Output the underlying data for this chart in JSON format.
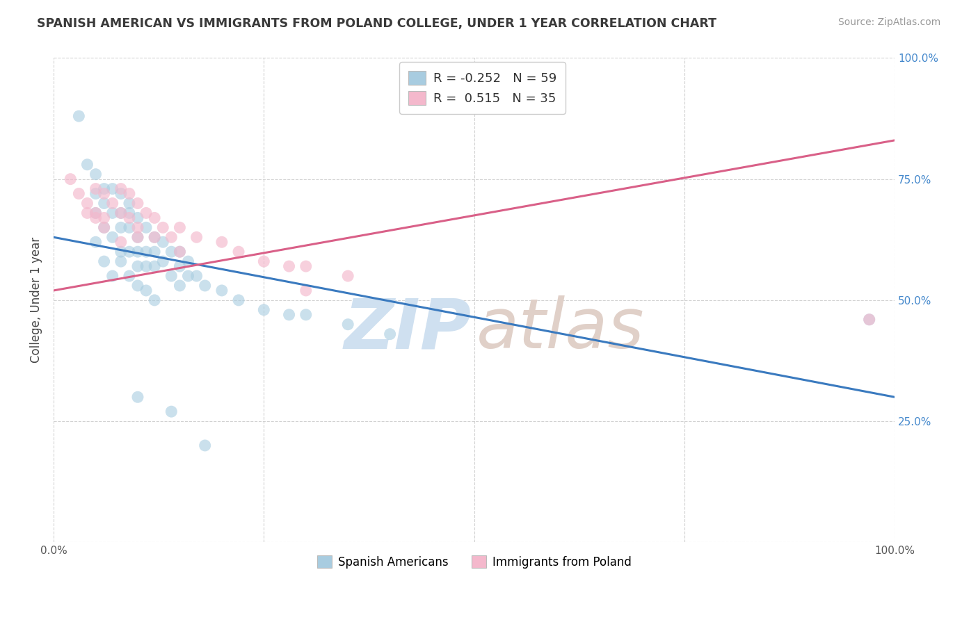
{
  "title": "SPANISH AMERICAN VS IMMIGRANTS FROM POLAND COLLEGE, UNDER 1 YEAR CORRELATION CHART",
  "source": "Source: ZipAtlas.com",
  "ylabel": "College, Under 1 year",
  "xlim": [
    0,
    100
  ],
  "ylim": [
    0,
    100
  ],
  "blue_R": -0.252,
  "blue_N": 59,
  "pink_R": 0.515,
  "pink_N": 35,
  "blue_scatter_color": "#a8cce0",
  "pink_scatter_color": "#f4b8cc",
  "blue_line_color": "#3a7abf",
  "pink_line_color": "#d96088",
  "legend_label_blue": "Spanish Americans",
  "legend_label_pink": "Immigrants from Poland",
  "watermark_zip_color": "#cfe0f0",
  "watermark_atlas_color": "#e0d0c8",
  "background_color": "#ffffff",
  "grid_color": "#cccccc",
  "title_color": "#3a3a3a",
  "source_color": "#999999",
  "right_tick_color": "#4488cc",
  "blue_line_x": [
    0,
    100
  ],
  "blue_line_y": [
    63,
    30
  ],
  "pink_line_x": [
    0,
    100
  ],
  "pink_line_y": [
    52,
    83
  ],
  "blue_scatter_x": [
    3,
    4,
    5,
    5,
    5,
    6,
    6,
    6,
    7,
    7,
    7,
    8,
    8,
    8,
    8,
    9,
    9,
    9,
    9,
    10,
    10,
    10,
    10,
    11,
    11,
    11,
    12,
    12,
    12,
    13,
    13,
    14,
    14,
    15,
    15,
    15,
    16,
    16,
    17,
    18,
    20,
    22,
    25,
    28,
    30,
    35,
    40,
    5,
    6,
    7,
    8,
    9,
    10,
    11,
    12,
    97,
    10,
    14,
    18
  ],
  "blue_scatter_y": [
    88,
    78,
    76,
    72,
    68,
    73,
    70,
    65,
    73,
    68,
    63,
    72,
    68,
    65,
    60,
    70,
    68,
    65,
    60,
    67,
    63,
    60,
    57,
    65,
    60,
    57,
    63,
    60,
    57,
    62,
    58,
    60,
    55,
    60,
    57,
    53,
    58,
    55,
    55,
    53,
    52,
    50,
    48,
    47,
    47,
    45,
    43,
    62,
    58,
    55,
    58,
    55,
    53,
    52,
    50,
    46,
    30,
    27,
    20
  ],
  "pink_scatter_x": [
    2,
    3,
    4,
    5,
    5,
    6,
    6,
    7,
    8,
    8,
    9,
    9,
    10,
    10,
    11,
    12,
    12,
    13,
    14,
    15,
    15,
    17,
    20,
    22,
    25,
    28,
    30,
    35,
    4,
    5,
    6,
    8,
    10,
    97,
    30
  ],
  "pink_scatter_y": [
    75,
    72,
    70,
    73,
    68,
    72,
    67,
    70,
    73,
    68,
    72,
    67,
    70,
    65,
    68,
    67,
    63,
    65,
    63,
    65,
    60,
    63,
    62,
    60,
    58,
    57,
    57,
    55,
    68,
    67,
    65,
    62,
    63,
    46,
    52
  ]
}
